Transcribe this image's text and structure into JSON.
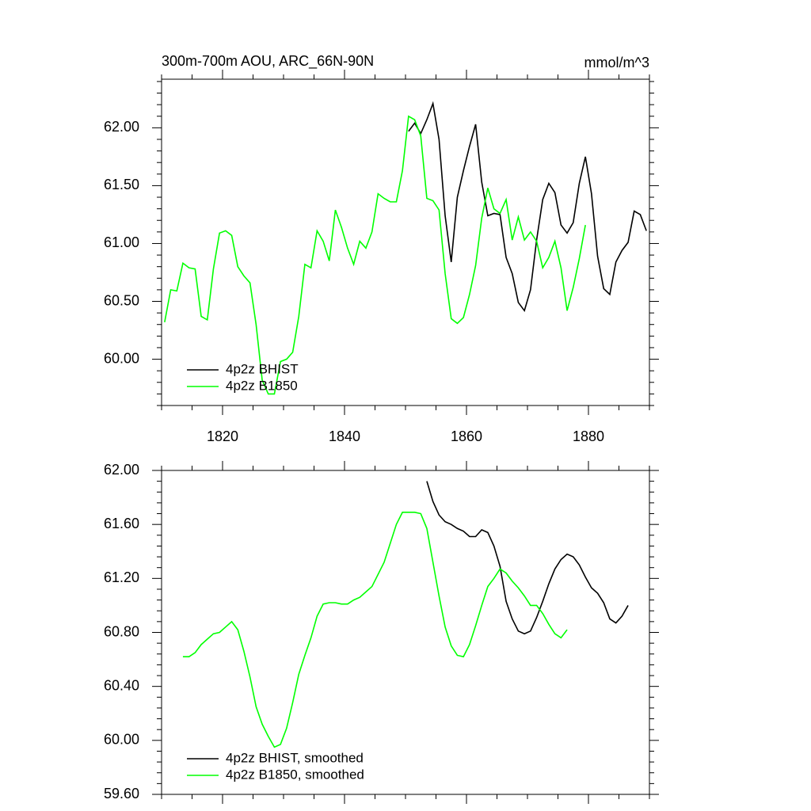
{
  "chart_data": [
    {
      "type": "line",
      "title": "300m-700m AOU, ARC_66N-90N",
      "units": "mmol/m^3",
      "x": [
        1810.5,
        1811.5,
        1812.5,
        1813.5,
        1814.5,
        1815.5,
        1816.5,
        1817.5,
        1818.5,
        1819.5,
        1820.5,
        1821.5,
        1822.5,
        1823.5,
        1824.5,
        1825.5,
        1826.5,
        1827.5,
        1828.5,
        1829.5,
        1830.5,
        1831.5,
        1832.5,
        1833.5,
        1834.5,
        1835.5,
        1836.5,
        1837.5,
        1838.5,
        1839.5,
        1840.5,
        1841.5,
        1842.5,
        1843.5,
        1844.5,
        1845.5,
        1846.5,
        1847.5,
        1848.5,
        1849.5,
        1850.5,
        1851.5,
        1852.5,
        1853.5,
        1854.5,
        1855.5,
        1856.5,
        1857.5,
        1858.5,
        1859.5,
        1860.5,
        1861.5,
        1862.5,
        1863.5,
        1864.5,
        1865.5,
        1866.5,
        1867.5,
        1868.5,
        1869.5,
        1870.5,
        1871.5,
        1872.5,
        1873.5,
        1874.5,
        1875.5,
        1876.5,
        1877.5,
        1878.5,
        1879.5,
        1880.5,
        1881.5,
        1882.5,
        1883.5,
        1884.5,
        1885.5,
        1886.5,
        1887.5,
        1888.5,
        1889.5
      ],
      "series": [
        {
          "name": "4p2z BHIST",
          "color": "#000000",
          "values": [
            null,
            null,
            null,
            null,
            null,
            null,
            null,
            null,
            null,
            null,
            null,
            null,
            null,
            null,
            null,
            null,
            null,
            null,
            null,
            null,
            null,
            null,
            null,
            null,
            null,
            null,
            null,
            null,
            null,
            null,
            null,
            null,
            null,
            null,
            null,
            null,
            null,
            null,
            null,
            null,
            61.97,
            62.04,
            61.95,
            62.07,
            62.21,
            61.9,
            61.24,
            60.84,
            61.4,
            61.63,
            61.84,
            62.03,
            61.53,
            61.24,
            61.26,
            61.25,
            60.88,
            60.74,
            60.49,
            60.42,
            60.6,
            61.03,
            61.38,
            61.52,
            61.44,
            61.16,
            61.09,
            61.18,
            61.52,
            61.75,
            61.43,
            60.89,
            60.61,
            60.56,
            60.84,
            60.94,
            61.01,
            61.28,
            61.25,
            61.11
          ]
        },
        {
          "name": "4p2z B1850",
          "color": "#00ff00",
          "values": [
            60.32,
            60.6,
            60.59,
            60.83,
            60.79,
            60.78,
            60.37,
            60.34,
            60.78,
            61.09,
            61.11,
            61.07,
            60.8,
            60.72,
            60.66,
            60.3,
            59.82,
            59.7,
            59.7,
            59.98,
            60.0,
            60.06,
            60.37,
            60.82,
            60.79,
            61.11,
            61.02,
            60.85,
            61.29,
            61.14,
            60.96,
            60.82,
            61.02,
            60.96,
            61.1,
            61.43,
            61.39,
            61.36,
            61.36,
            61.63,
            62.1,
            62.07,
            61.93,
            61.39,
            61.37,
            61.29,
            60.74,
            60.35,
            60.31,
            60.36,
            60.56,
            60.81,
            61.22,
            61.48,
            61.3,
            61.26,
            61.38,
            61.03,
            61.23,
            61.03,
            61.1,
            61.02,
            60.79,
            60.88,
            61.02,
            60.79,
            60.42,
            60.62,
            60.87,
            61.16,
            null,
            null,
            null,
            null,
            null,
            null,
            null,
            null,
            null,
            null
          ]
        }
      ],
      "xlim": [
        1810,
        1890
      ],
      "xticks": [
        1820,
        1840,
        1860,
        1880
      ],
      "ylim": [
        59.6,
        62.42
      ],
      "yticks": [
        {
          "value": 60,
          "label": "60.00"
        },
        {
          "value": 60.5,
          "label": "60.50"
        },
        {
          "value": 61,
          "label": "61.00"
        },
        {
          "value": 61.5,
          "label": "61.50"
        },
        {
          "value": 62,
          "label": "62.00"
        }
      ],
      "legend": "lower left"
    },
    {
      "type": "line",
      "x": [
        1810.5,
        1811.5,
        1812.5,
        1813.5,
        1814.5,
        1815.5,
        1816.5,
        1817.5,
        1818.5,
        1819.5,
        1820.5,
        1821.5,
        1822.5,
        1823.5,
        1824.5,
        1825.5,
        1826.5,
        1827.5,
        1828.5,
        1829.5,
        1830.5,
        1831.5,
        1832.5,
        1833.5,
        1834.5,
        1835.5,
        1836.5,
        1837.5,
        1838.5,
        1839.5,
        1840.5,
        1841.5,
        1842.5,
        1843.5,
        1844.5,
        1845.5,
        1846.5,
        1847.5,
        1848.5,
        1849.5,
        1850.5,
        1851.5,
        1852.5,
        1853.5,
        1854.5,
        1855.5,
        1856.5,
        1857.5,
        1858.5,
        1859.5,
        1860.5,
        1861.5,
        1862.5,
        1863.5,
        1864.5,
        1865.5,
        1866.5,
        1867.5,
        1868.5,
        1869.5,
        1870.5,
        1871.5,
        1872.5,
        1873.5,
        1874.5,
        1875.5,
        1876.5,
        1877.5,
        1878.5,
        1879.5,
        1880.5,
        1881.5,
        1882.5,
        1883.5,
        1884.5,
        1885.5,
        1886.5,
        1887.5,
        1888.5,
        1889.5
      ],
      "series": [
        {
          "name": "4p2z BHIST, smoothed",
          "color": "#000000",
          "values": [
            null,
            null,
            null,
            null,
            null,
            null,
            null,
            null,
            null,
            null,
            null,
            null,
            null,
            null,
            null,
            null,
            null,
            null,
            null,
            null,
            null,
            null,
            null,
            null,
            null,
            null,
            null,
            null,
            null,
            null,
            null,
            null,
            null,
            null,
            null,
            null,
            null,
            null,
            null,
            null,
            null,
            null,
            null,
            61.92,
            61.77,
            61.67,
            61.62,
            61.6,
            61.57,
            61.55,
            61.51,
            61.51,
            61.56,
            61.54,
            61.44,
            61.29,
            61.03,
            60.9,
            60.81,
            60.79,
            60.81,
            60.91,
            61.03,
            61.16,
            61.27,
            61.34,
            61.38,
            61.36,
            61.3,
            61.21,
            61.13,
            61.09,
            61.02,
            60.9,
            60.87,
            60.92,
            61.0,
            null,
            null,
            null
          ]
        },
        {
          "name": "4p2z B1850, smoothed",
          "color": "#00ff00",
          "values": [
            null,
            null,
            null,
            60.62,
            60.62,
            60.65,
            60.71,
            60.75,
            60.79,
            60.8,
            60.84,
            60.88,
            60.82,
            60.66,
            60.47,
            60.25,
            60.12,
            60.03,
            59.95,
            59.97,
            60.09,
            60.28,
            60.49,
            60.63,
            60.76,
            60.92,
            61.01,
            61.02,
            61.02,
            61.01,
            61.01,
            61.04,
            61.06,
            61.1,
            61.14,
            61.23,
            61.32,
            61.46,
            61.6,
            61.69,
            61.69,
            61.69,
            61.68,
            61.57,
            61.32,
            61.07,
            60.84,
            60.7,
            60.63,
            60.62,
            60.71,
            60.85,
            61.0,
            61.14,
            61.2,
            61.27,
            61.24,
            61.18,
            61.13,
            61.07,
            61.0,
            61.0,
            60.94,
            60.86,
            60.79,
            60.76,
            60.82,
            null,
            null,
            null,
            null,
            null,
            null,
            null,
            null,
            null,
            null,
            null,
            null,
            null
          ]
        }
      ],
      "xlim": [
        1810,
        1890
      ],
      "xticks": [
        1820,
        1840,
        1860,
        1880
      ],
      "ylim": [
        59.6,
        62
      ],
      "yticks": [
        {
          "value": 59.6,
          "label": "59.60"
        },
        {
          "value": 60,
          "label": "60.00"
        },
        {
          "value": 60.4,
          "label": "60.40"
        },
        {
          "value": 60.8,
          "label": "60.80"
        },
        {
          "value": 61.2,
          "label": "61.20"
        },
        {
          "value": 61.6,
          "label": "61.60"
        },
        {
          "value": 62,
          "label": "62.00"
        }
      ],
      "legend": "lower left"
    }
  ]
}
